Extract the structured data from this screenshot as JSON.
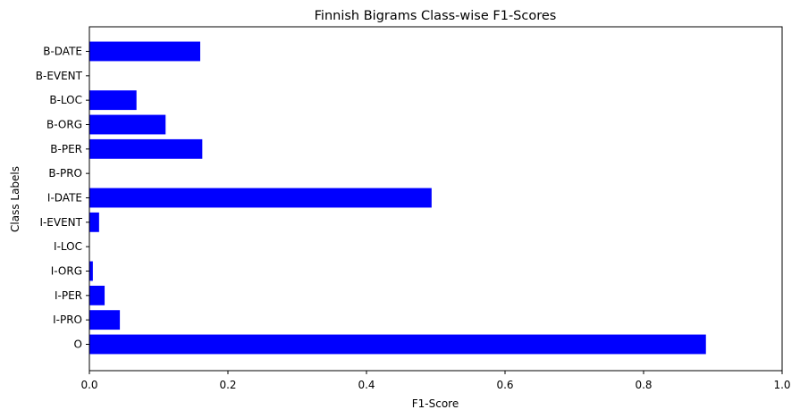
{
  "chart_data": {
    "type": "bar",
    "orientation": "horizontal",
    "title": "Finnish Bigrams Class-wise F1-Scores",
    "xlabel": "F1-Score",
    "ylabel": "Class Labels",
    "xlim": [
      0,
      1.0
    ],
    "xticks": [
      "0.0",
      "0.2",
      "0.4",
      "0.6",
      "0.8",
      "1.0"
    ],
    "xtick_values": [
      0,
      0.2,
      0.4,
      0.6,
      0.8,
      1.0
    ],
    "categories": [
      "O",
      "I-PRO",
      "I-PER",
      "I-ORG",
      "I-LOC",
      "I-EVENT",
      "I-DATE",
      "B-PRO",
      "B-PER",
      "B-ORG",
      "B-LOC",
      "B-EVENT",
      "B-DATE"
    ],
    "values": [
      0.89,
      0.044,
      0.022,
      0.005,
      0.0,
      0.014,
      0.494,
      0.0,
      0.163,
      0.11,
      0.068,
      0.0,
      0.16
    ],
    "bar_color": "#0000ff",
    "grid": false
  }
}
